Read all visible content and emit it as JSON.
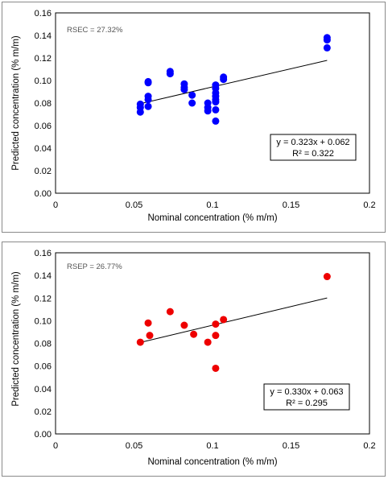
{
  "chart_data": [
    {
      "type": "scatter",
      "xlabel": "Nominal concentration (% m/m)",
      "ylabel": "Predicted concentration (% m/m)",
      "xlim": [
        0,
        0.2
      ],
      "ylim": [
        0,
        0.16
      ],
      "xticks": [
        "0",
        "0.05",
        "0.1",
        "0.15",
        "0.2"
      ],
      "yticks": [
        "0.00",
        "0.02",
        "0.04",
        "0.06",
        "0.08",
        "0.10",
        "0.12",
        "0.14",
        "0.16"
      ],
      "stat_label": "RSEC = 27.32%",
      "equation": "y = 0.323x + 0.062",
      "r_squared": "R² = 0.322",
      "trendline": {
        "slope": 0.323,
        "intercept": 0.062,
        "x_range": [
          0.054,
          0.173
        ]
      },
      "marker_color": "#0000ff",
      "grid": false,
      "series": [
        {
          "x": [
            0.054,
            0.054,
            0.054,
            0.059,
            0.059,
            0.059,
            0.059,
            0.059,
            0.073,
            0.073,
            0.082,
            0.082,
            0.082,
            0.087,
            0.087,
            0.097,
            0.097,
            0.097,
            0.102,
            0.102,
            0.102,
            0.102,
            0.102,
            0.102,
            0.102,
            0.102,
            0.107,
            0.107,
            0.173,
            0.173,
            0.173
          ],
          "y": [
            0.079,
            0.076,
            0.072,
            0.099,
            0.098,
            0.086,
            0.083,
            0.077,
            0.108,
            0.106,
            0.097,
            0.094,
            0.092,
            0.087,
            0.08,
            0.08,
            0.076,
            0.073,
            0.096,
            0.093,
            0.089,
            0.086,
            0.083,
            0.081,
            0.074,
            0.064,
            0.103,
            0.101,
            0.138,
            0.136,
            0.129
          ]
        }
      ]
    },
    {
      "type": "scatter",
      "xlabel": "Nominal concentration (% m/m)",
      "ylabel": "Predicted concentration (% m/m)",
      "xlim": [
        0,
        0.2
      ],
      "ylim": [
        0,
        0.16
      ],
      "xticks": [
        "0",
        "0.05",
        "0.1",
        "0.15",
        "0.2"
      ],
      "yticks": [
        "0.00",
        "0.02",
        "0.04",
        "0.06",
        "0.08",
        "0.10",
        "0.12",
        "0.14",
        "0.16"
      ],
      "stat_label": "RSEP = 26.77%",
      "equation": "y = 0.330x + 0.063",
      "r_squared": "R² = 0.295",
      "trendline": {
        "slope": 0.33,
        "intercept": 0.063,
        "x_range": [
          0.054,
          0.173
        ]
      },
      "marker_color": "#ee0000",
      "grid": false,
      "series": [
        {
          "x": [
            0.054,
            0.059,
            0.06,
            0.073,
            0.082,
            0.088,
            0.097,
            0.102,
            0.102,
            0.102,
            0.107,
            0.173
          ],
          "y": [
            0.081,
            0.098,
            0.087,
            0.108,
            0.096,
            0.088,
            0.081,
            0.097,
            0.087,
            0.058,
            0.101,
            0.139
          ]
        }
      ]
    }
  ]
}
